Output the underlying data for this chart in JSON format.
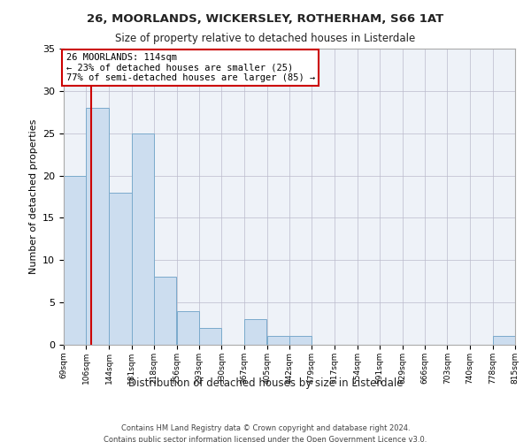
{
  "title1": "26, MOORLANDS, WICKERSLEY, ROTHERHAM, S66 1AT",
  "title2": "Size of property relative to detached houses in Listerdale",
  "xlabel": "Distribution of detached houses by size in Listerdale",
  "ylabel": "Number of detached properties",
  "bar_color": "#ccddef",
  "bar_edge_color": "#7aaacc",
  "bins": [
    69,
    106,
    144,
    181,
    218,
    256,
    293,
    330,
    367,
    405,
    442,
    479,
    517,
    554,
    591,
    629,
    666,
    703,
    740,
    778,
    815
  ],
  "values": [
    20,
    28,
    18,
    25,
    8,
    4,
    2,
    0,
    3,
    1,
    1,
    0,
    0,
    0,
    0,
    0,
    0,
    0,
    0,
    1
  ],
  "property_size": 114,
  "annotation_text": "26 MOORLANDS: 114sqm\n← 23% of detached houses are smaller (25)\n77% of semi-detached houses are larger (85) →",
  "vline_color": "#cc0000",
  "annotation_box_color": "#ffffff",
  "annotation_box_edge": "#cc0000",
  "ylim": [
    0,
    35
  ],
  "yticks": [
    0,
    5,
    10,
    15,
    20,
    25,
    30,
    35
  ],
  "footer1": "Contains HM Land Registry data © Crown copyright and database right 2024.",
  "footer2": "Contains public sector information licensed under the Open Government Licence v3.0.",
  "background_color": "#eef2f8",
  "grid_color": "#bbbbcc"
}
